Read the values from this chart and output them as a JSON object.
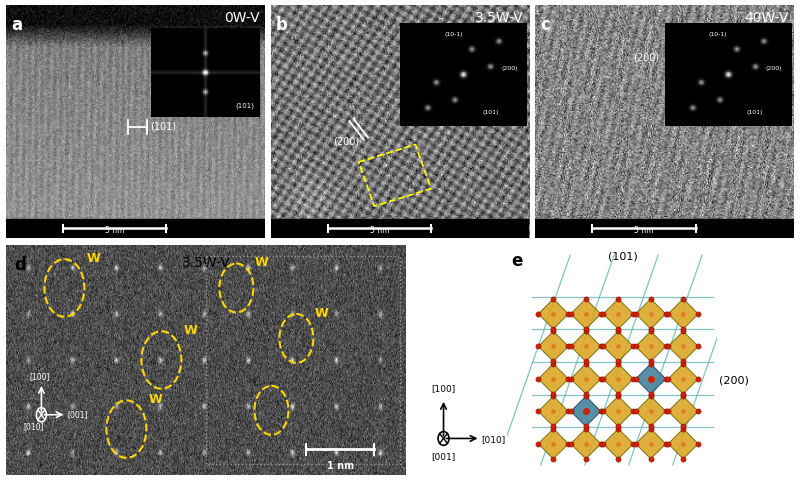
{
  "panel_a_label": "a",
  "panel_b_label": "b",
  "panel_c_label": "c",
  "panel_d_label": "d",
  "panel_e_label": "e",
  "title_a": "0W-V",
  "title_b": "3.5W-V",
  "title_c": "40W-V",
  "title_d": "3.5W-V",
  "label_101": "(101)",
  "label_200": "(200)",
  "label_101_neg": "(10-1)",
  "scale_bar": "5 nm",
  "scale_bar_d": "1 nm",
  "bg_color": "#ffffff",
  "text_color_white": "#ffffff",
  "text_color_black": "#000000",
  "text_color_yellow": "#FFD700",
  "crystal_gold": "#DAA520",
  "crystal_teal": "#3E7F9A",
  "atom_red": "#CC2200",
  "atom_orange": "#E07020",
  "line_teal": "#5AAFAF",
  "edge_color": "#555500"
}
